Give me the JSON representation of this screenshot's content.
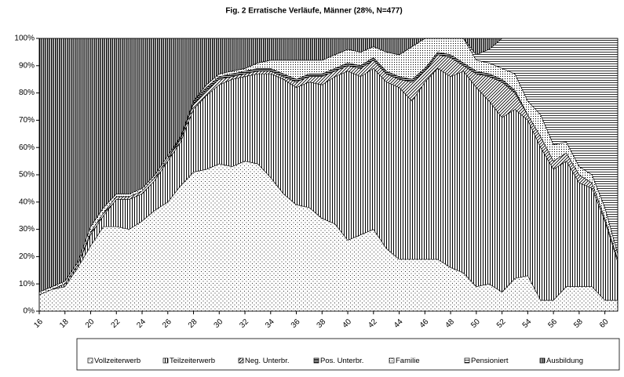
{
  "chart_data": {
    "type": "stacked_area",
    "title": "Fig. 2   Erratische Verläufe, Männer (28%, N=477)",
    "x": [
      16,
      17,
      18,
      19,
      20,
      21,
      22,
      23,
      24,
      25,
      26,
      27,
      28,
      29,
      30,
      31,
      32,
      33,
      34,
      35,
      36,
      37,
      38,
      39,
      40,
      41,
      42,
      43,
      44,
      45,
      46,
      47,
      48,
      49,
      50,
      51,
      52,
      53,
      54,
      55,
      56,
      57,
      58,
      59,
      60,
      61
    ],
    "xlim": [
      16,
      61
    ],
    "xticks": [
      16,
      18,
      20,
      22,
      24,
      26,
      28,
      30,
      32,
      34,
      36,
      38,
      40,
      42,
      44,
      46,
      48,
      50,
      52,
      54,
      56,
      58,
      60
    ],
    "ylim": [
      0,
      100
    ],
    "yticks": [
      {
        "value": 0,
        "label": "0%"
      },
      {
        "value": 10,
        "label": "10%"
      },
      {
        "value": 20,
        "label": "20%"
      },
      {
        "value": 30,
        "label": "30%"
      },
      {
        "value": 40,
        "label": "40%"
      },
      {
        "value": 50,
        "label": "50%"
      },
      {
        "value": 60,
        "label": "60%"
      },
      {
        "value": 70,
        "label": "70%"
      },
      {
        "value": 80,
        "label": "80%"
      },
      {
        "value": 90,
        "label": "90%"
      },
      {
        "value": 100,
        "label": "100%"
      }
    ],
    "series": [
      {
        "name": "Vollzeiterwerb",
        "values": [
          6,
          8,
          9,
          16,
          24,
          31,
          31,
          30,
          33,
          37,
          40,
          46,
          51,
          52,
          54,
          53,
          55,
          54,
          49,
          43,
          39,
          38,
          34,
          32,
          26,
          28,
          30,
          23,
          19,
          19,
          19,
          19,
          16,
          14,
          9,
          10,
          7,
          12,
          13,
          4,
          4,
          9,
          9,
          9,
          4,
          4
        ]
      },
      {
        "name": "Teilzeiterwerb",
        "values": [
          0,
          0,
          1,
          1,
          4,
          4,
          10,
          11,
          10,
          11,
          15,
          16,
          23,
          27,
          29,
          32,
          31,
          33,
          38,
          42,
          43,
          46,
          49,
          54,
          62,
          58,
          59,
          61,
          63,
          58,
          65,
          70,
          70,
          74,
          73,
          67,
          64,
          62,
          57,
          56,
          48,
          46,
          38,
          36,
          29,
          14
        ]
      },
      {
        "name": "Neg. Unterbr.",
        "values": [
          0,
          0,
          0,
          0,
          1,
          1,
          1,
          1,
          1,
          1,
          1,
          1,
          2,
          2,
          2,
          1,
          1,
          1,
          1,
          1,
          2,
          2,
          3,
          2,
          2,
          3,
          3,
          3,
          3,
          7,
          4,
          5,
          7,
          2,
          5,
          9,
          13,
          6,
          2,
          4,
          3,
          3,
          3,
          2,
          1,
          1
        ]
      },
      {
        "name": "Pos. Unterbr.",
        "values": [
          0,
          0,
          0,
          0,
          0,
          0,
          0,
          0,
          0,
          0,
          0,
          1,
          1,
          1,
          1,
          1,
          1,
          1,
          1,
          1,
          1,
          1,
          1,
          1,
          1,
          1,
          1,
          1,
          1,
          1,
          1,
          1,
          1,
          1,
          1,
          1,
          1,
          1,
          0,
          0,
          0,
          0,
          0,
          0,
          0,
          0
        ]
      },
      {
        "name": "Familie",
        "values": [
          1,
          1,
          1,
          1,
          2,
          2,
          1,
          1,
          1,
          1,
          1,
          0,
          0,
          1,
          1,
          1,
          1,
          2,
          3,
          5,
          7,
          5,
          5,
          5,
          5,
          5,
          4,
          7,
          8,
          12,
          11,
          5,
          6,
          9,
          4,
          4,
          4,
          6,
          5,
          8,
          6,
          4,
          3,
          3,
          4,
          2
        ]
      },
      {
        "name": "Pensioniert",
        "values": [
          0,
          0,
          0,
          0,
          0,
          0,
          0,
          0,
          0,
          0,
          0,
          0,
          0,
          0,
          0,
          0,
          0,
          0,
          0,
          0,
          0,
          0,
          0,
          0,
          0,
          0,
          0,
          0,
          0,
          0,
          0,
          0,
          0,
          0,
          2,
          5,
          11,
          13,
          23,
          28,
          39,
          38,
          47,
          50,
          62,
          79
        ]
      },
      {
        "name": "Ausbildung",
        "values": [
          93,
          91,
          89,
          82,
          69,
          62,
          57,
          57,
          55,
          50,
          43,
          36,
          23,
          17,
          13,
          12,
          11,
          9,
          8,
          8,
          8,
          8,
          8,
          6,
          4,
          5,
          3,
          5,
          6,
          3,
          0,
          0,
          0,
          0,
          6,
          4,
          0,
          0,
          0,
          0,
          0,
          0,
          0,
          0,
          0,
          0
        ]
      }
    ]
  }
}
